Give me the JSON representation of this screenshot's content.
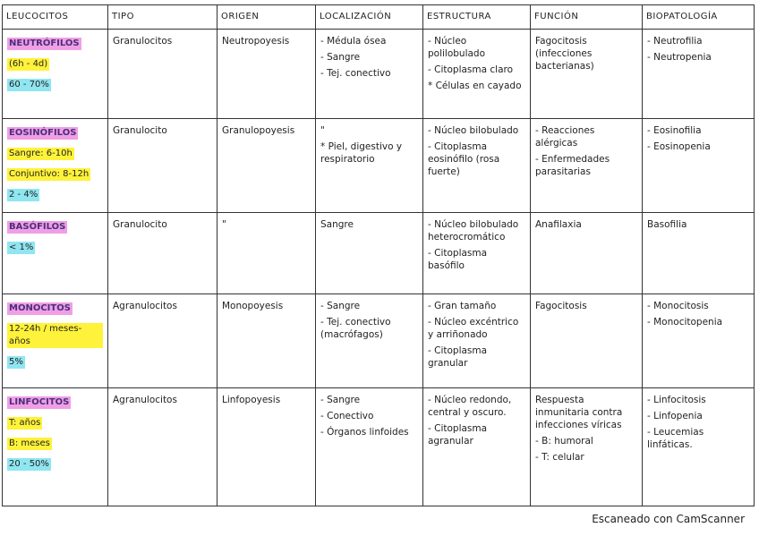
{
  "table": {
    "headers": [
      "LEUCOCITOS",
      "TIPO",
      "ORIGEN",
      "LOCALIZACIÓN",
      "ESTRUCTURA",
      "FUNCIÓN",
      "BIOPATOLOGÍA"
    ],
    "rows": [
      [
        [
          "NEUTRÓFILOS",
          "(6h - 4d)",
          "60 - 70%"
        ],
        [
          "Granulocitos"
        ],
        [
          "Neutropoyesis"
        ],
        [
          "- Médula ósea",
          "- Sangre",
          "- Tej. conectivo"
        ],
        [
          "- Núcleo polilobulado",
          "- Citoplasma claro",
          "* Células en cayado"
        ],
        [
          "Fagocitosis (infecciones bacterianas)"
        ],
        [
          "- Neutrofilia",
          "- Neutropenia"
        ]
      ],
      [
        [
          "EOSINÓFILOS",
          "Sangre: 6-10h",
          "Conjuntivo: 8-12h",
          "2 - 4%"
        ],
        [
          "Granulocito"
        ],
        [
          "Granulopoyesis"
        ],
        [
          "\"",
          "* Piel, digestivo y respiratorio"
        ],
        [
          "- Núcleo bilobulado",
          "- Citoplasma eosinófilo (rosa fuerte)"
        ],
        [
          "- Reacciones alérgicas",
          "- Enfermedades parasitarias"
        ],
        [
          "- Eosinofilia",
          "- Eosinopenia"
        ]
      ],
      [
        [
          "BASÓFILOS",
          "< 1%"
        ],
        [
          "Granulocito"
        ],
        [
          "\""
        ],
        [
          "Sangre"
        ],
        [
          "- Núcleo bilobulado heterocromático",
          "- Citoplasma basófilo"
        ],
        [
          "Anafilaxia"
        ],
        [
          "Basofilia"
        ]
      ],
      [
        [
          "MONOCITOS",
          "12-24h / meses-años",
          "5%"
        ],
        [
          "Agranulocitos"
        ],
        [
          "Monopoyesis"
        ],
        [
          "- Sangre",
          "- Tej. conectivo (macrófagos)"
        ],
        [
          "- Gran tamaño",
          "- Núcleo excéntrico y arriñonado",
          "- Citoplasma granular"
        ],
        [
          "Fagocitosis"
        ],
        [
          "- Monocitosis",
          "- Monocitopenia"
        ]
      ],
      [
        [
          "LINFOCITOS",
          "T: años",
          "B: meses",
          "20 - 50%"
        ],
        [
          "Agranulocitos"
        ],
        [
          "Linfopoyesis"
        ],
        [
          "- Sangre",
          "- Conectivo",
          "- Órganos linfoides"
        ],
        [
          "- Núcleo redondo, central y oscuro.",
          "- Citoplasma agranular"
        ],
        [
          "Respuesta inmunitaria contra infecciones víricas",
          "- B: humoral",
          "- T: celular"
        ],
        [
          "- Linfocitosis",
          "- Linfopenia",
          "- Leucemias linfáticas."
        ]
      ]
    ]
  },
  "footer": "Escaneado con CamScanner"
}
